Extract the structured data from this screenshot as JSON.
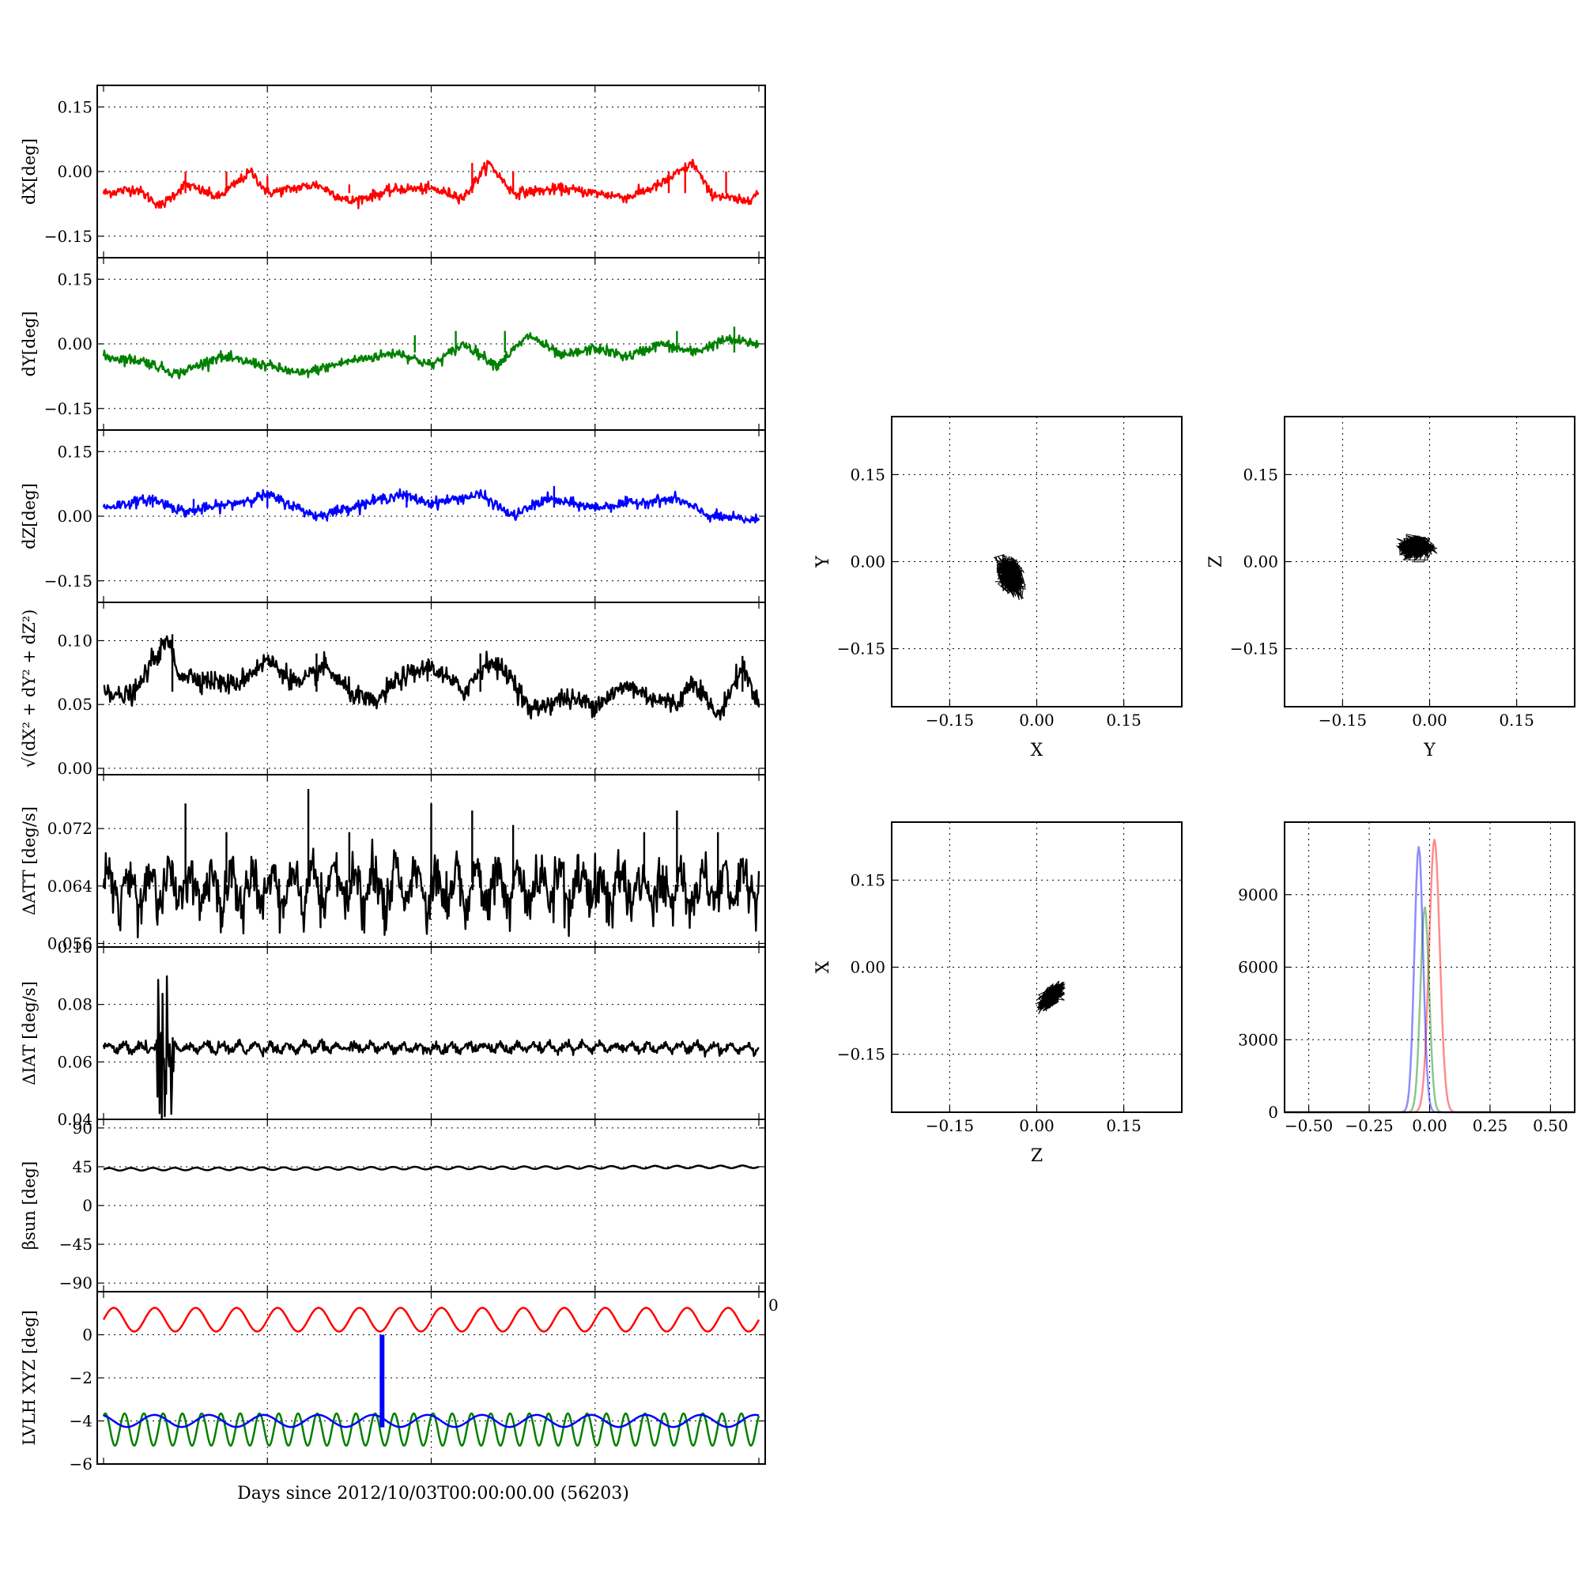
{
  "figure": {
    "xlabel_bottom": "Days since 2012/10/03T00:00:00.00 (56203)",
    "stray_label": "0"
  },
  "chart_data": [
    {
      "id": "dx",
      "type": "line",
      "ylabel": "dX[deg]",
      "ylim": [
        -0.2,
        0.2
      ],
      "yticks": [
        -0.15,
        0.0,
        0.15
      ],
      "ytick_labels": [
        "−0.15",
        "0.00",
        "0.15"
      ],
      "grid": true,
      "x_range": [
        0,
        4
      ],
      "series": [
        {
          "color": "#ff0000",
          "baseline": -0.05,
          "noise": 0.006,
          "knots": [
            [
              0,
              -0.05
            ],
            [
              0.2,
              -0.04
            ],
            [
              0.35,
              -0.08
            ],
            [
              0.5,
              -0.03
            ],
            [
              0.7,
              -0.06
            ],
            [
              0.9,
              0.0
            ],
            [
              1.0,
              -0.05
            ],
            [
              1.3,
              -0.03
            ],
            [
              1.5,
              -0.07
            ],
            [
              1.8,
              -0.04
            ],
            [
              2.0,
              -0.04
            ],
            [
              2.2,
              -0.06
            ],
            [
              2.35,
              0.02
            ],
            [
              2.5,
              -0.05
            ],
            [
              2.8,
              -0.04
            ],
            [
              3.0,
              -0.05
            ],
            [
              3.2,
              -0.06
            ],
            [
              3.4,
              -0.03
            ],
            [
              3.6,
              0.02
            ],
            [
              3.7,
              -0.05
            ],
            [
              3.9,
              -0.07
            ],
            [
              4.0,
              -0.05
            ]
          ],
          "spikes": [
            [
              0.5,
              0.0
            ],
            [
              0.75,
              0.0
            ],
            [
              1.0,
              -0.01
            ],
            [
              1.5,
              -0.03
            ],
            [
              2.25,
              0.02
            ],
            [
              2.5,
              0.0
            ],
            [
              3.45,
              0.0
            ],
            [
              3.55,
              0.02
            ],
            [
              3.8,
              0.0
            ]
          ]
        }
      ]
    },
    {
      "id": "dy",
      "type": "line",
      "ylabel": "dY[deg]",
      "ylim": [
        -0.2,
        0.2
      ],
      "yticks": [
        -0.15,
        0.0,
        0.15
      ],
      "ytick_labels": [
        "−0.15",
        "0.00",
        "0.15"
      ],
      "grid": true,
      "x_range": [
        0,
        4
      ],
      "series": [
        {
          "color": "#008000",
          "baseline": -0.02,
          "noise": 0.006,
          "knots": [
            [
              0,
              -0.03
            ],
            [
              0.25,
              -0.04
            ],
            [
              0.45,
              -0.07
            ],
            [
              0.7,
              -0.03
            ],
            [
              1.0,
              -0.05
            ],
            [
              1.2,
              -0.07
            ],
            [
              1.5,
              -0.04
            ],
            [
              1.8,
              -0.02
            ],
            [
              2.0,
              -0.05
            ],
            [
              2.2,
              0.0
            ],
            [
              2.4,
              -0.05
            ],
            [
              2.6,
              0.02
            ],
            [
              2.8,
              -0.03
            ],
            [
              3.0,
              -0.01
            ],
            [
              3.2,
              -0.03
            ],
            [
              3.4,
              0.0
            ],
            [
              3.6,
              -0.02
            ],
            [
              3.8,
              0.01
            ],
            [
              4.0,
              0.0
            ]
          ],
          "spikes": [
            [
              1.9,
              0.02
            ],
            [
              2.15,
              0.03
            ],
            [
              2.45,
              0.03
            ],
            [
              2.85,
              -0.01
            ],
            [
              3.5,
              0.03
            ],
            [
              3.85,
              0.04
            ]
          ]
        }
      ]
    },
    {
      "id": "dz",
      "type": "line",
      "ylabel": "dZ[deg]",
      "ylim": [
        -0.2,
        0.2
      ],
      "yticks": [
        -0.15,
        0.0,
        0.15
      ],
      "ytick_labels": [
        "−0.15",
        "0.00",
        "0.15"
      ],
      "grid": true,
      "x_range": [
        0,
        4
      ],
      "series": [
        {
          "color": "#0000ff",
          "baseline": 0.02,
          "noise": 0.006,
          "knots": [
            [
              0,
              0.02
            ],
            [
              0.3,
              0.04
            ],
            [
              0.5,
              0.01
            ],
            [
              0.8,
              0.03
            ],
            [
              1.0,
              0.05
            ],
            [
              1.3,
              0.0
            ],
            [
              1.5,
              0.02
            ],
            [
              1.8,
              0.05
            ],
            [
              2.0,
              0.03
            ],
            [
              2.3,
              0.05
            ],
            [
              2.5,
              0.0
            ],
            [
              2.7,
              0.04
            ],
            [
              3.0,
              0.02
            ],
            [
              3.2,
              0.03
            ],
            [
              3.5,
              0.04
            ],
            [
              3.7,
              0.0
            ],
            [
              4.0,
              -0.01
            ]
          ],
          "spikes": [
            [
              0.3,
              0.05
            ],
            [
              0.55,
              0.04
            ],
            [
              1.0,
              0.06
            ],
            [
              1.85,
              0.06
            ],
            [
              2.75,
              0.07
            ]
          ]
        }
      ]
    },
    {
      "id": "dr",
      "type": "line",
      "ylabel": "√(dX² + dY² + dZ²)",
      "ylim": [
        -0.005,
        0.13
      ],
      "yticks": [
        0.0,
        0.05,
        0.1
      ],
      "ytick_labels": [
        "0.00",
        "0.05",
        "0.10"
      ],
      "grid": true,
      "x_range": [
        0,
        4
      ],
      "series": [
        {
          "color": "#000000",
          "baseline": 0.06,
          "noise": 0.004,
          "knots": [
            [
              0,
              0.065
            ],
            [
              0.1,
              0.055
            ],
            [
              0.2,
              0.06
            ],
            [
              0.3,
              0.085
            ],
            [
              0.4,
              0.1
            ],
            [
              0.45,
              0.075
            ],
            [
              0.6,
              0.07
            ],
            [
              0.8,
              0.065
            ],
            [
              1.0,
              0.085
            ],
            [
              1.2,
              0.065
            ],
            [
              1.35,
              0.08
            ],
            [
              1.5,
              0.06
            ],
            [
              1.65,
              0.05
            ],
            [
              1.8,
              0.07
            ],
            [
              2.0,
              0.08
            ],
            [
              2.2,
              0.06
            ],
            [
              2.35,
              0.085
            ],
            [
              2.5,
              0.07
            ],
            [
              2.6,
              0.045
            ],
            [
              2.8,
              0.055
            ],
            [
              3.0,
              0.05
            ],
            [
              3.2,
              0.065
            ],
            [
              3.35,
              0.055
            ],
            [
              3.5,
              0.05
            ],
            [
              3.6,
              0.07
            ],
            [
              3.75,
              0.04
            ],
            [
              3.9,
              0.08
            ],
            [
              4.0,
              0.05
            ]
          ],
          "spikes": [
            [
              0.42,
              0.105
            ],
            [
              1.3,
              0.09
            ],
            [
              2.3,
              0.09
            ],
            [
              3.9,
              0.088
            ]
          ]
        }
      ]
    },
    {
      "id": "att",
      "type": "line",
      "ylabel": "ΔATT [deg/s]",
      "ylim": [
        0.0555,
        0.0795
      ],
      "yticks": [
        0.056,
        0.064,
        0.072
      ],
      "ytick_labels": [
        "0.056",
        "0.064",
        "0.072"
      ],
      "grid": true,
      "x_range": [
        0,
        4
      ],
      "series": [
        {
          "color": "#000000",
          "baseline": 0.0645,
          "amplitude": 0.0025,
          "cycles": 32,
          "noise": 0.0012,
          "spikes": [
            [
              0.5,
              0.0755
            ],
            [
              0.75,
              0.0715
            ],
            [
              1.25,
              0.0775
            ],
            [
              1.5,
              0.0715
            ],
            [
              2.0,
              0.0755
            ],
            [
              2.25,
              0.0745
            ],
            [
              2.5,
              0.0725
            ],
            [
              3.3,
              0.0715
            ],
            [
              3.5,
              0.0745
            ],
            [
              3.75,
              0.0715
            ]
          ]
        }
      ]
    },
    {
      "id": "iat",
      "type": "line",
      "ylabel": "ΔIAT [deg/s]",
      "ylim": [
        0.04,
        0.1
      ],
      "yticks": [
        0.04,
        0.06,
        0.08,
        0.1
      ],
      "ytick_labels": [
        "0.04",
        "0.06",
        "0.08",
        "0.10"
      ],
      "grid": true,
      "x_range": [
        0,
        4
      ],
      "series": [
        {
          "color": "#000000",
          "baseline": 0.065,
          "amplitude": 0.0012,
          "cycles": 40,
          "noise": 0.0008,
          "burst": [
            0.32,
            0.43
          ]
        }
      ]
    },
    {
      "id": "beta",
      "type": "line",
      "ylabel": "βsun [deg]",
      "ylim": [
        -100,
        100
      ],
      "yticks": [
        -90,
        -45,
        0,
        45,
        90
      ],
      "ytick_labels": [
        "−90",
        "−45",
        "0",
        "45",
        "90"
      ],
      "grid": true,
      "x_range": [
        0,
        4
      ],
      "series": [
        {
          "color": "#000000",
          "baseline": 42,
          "amplitude": 1.5,
          "cycles": 30,
          "trend": 3
        }
      ]
    },
    {
      "id": "lvlh",
      "type": "line",
      "ylabel": "LVLH XYZ [deg]",
      "ylim": [
        -6,
        2
      ],
      "yticks": [
        -6,
        -4,
        -2,
        0
      ],
      "ytick_labels": [
        "−6",
        "−4",
        "−2",
        "0"
      ],
      "grid": true,
      "x_range": [
        0,
        4
      ],
      "series": [
        {
          "color": "#ff0000",
          "baseline": 0.7,
          "amplitude": 0.55,
          "cycles": 16
        },
        {
          "color": "#008000",
          "baseline": -4.4,
          "amplitude": 0.75,
          "cycles": 34
        },
        {
          "color": "#0000ff",
          "baseline": -4.0,
          "amplitude": 0.28,
          "cycles": 12,
          "spike_x": 1.7
        }
      ]
    },
    {
      "id": "xy",
      "type": "scatter",
      "xlabel": "X",
      "ylabel": "Y",
      "xlim": [
        -0.25,
        0.25
      ],
      "ylim": [
        -0.25,
        0.25
      ],
      "xticks": [
        -0.15,
        0.0,
        0.15
      ],
      "yticks": [
        -0.15,
        0.0,
        0.15
      ],
      "tick_labels": [
        "−0.15",
        "0.00",
        "0.15"
      ],
      "grid": true,
      "cluster": {
        "cx": -0.045,
        "cy": -0.025,
        "sx": 0.015,
        "sy": 0.022,
        "rho": -0.3
      }
    },
    {
      "id": "yz",
      "type": "scatter",
      "xlabel": "Y",
      "ylabel": "Z",
      "xlim": [
        -0.25,
        0.25
      ],
      "ylim": [
        -0.25,
        0.25
      ],
      "xticks": [
        -0.15,
        0.0,
        0.15
      ],
      "yticks": [
        -0.15,
        0.0,
        0.15
      ],
      "tick_labels": [
        "−0.15",
        "0.00",
        "0.15"
      ],
      "grid": true,
      "cluster": {
        "cx": -0.025,
        "cy": 0.025,
        "sx": 0.02,
        "sy": 0.013,
        "rho": 0.0
      }
    },
    {
      "id": "zx",
      "type": "scatter",
      "xlabel": "Z",
      "ylabel": "X",
      "xlim": [
        -0.25,
        0.25
      ],
      "ylim": [
        -0.25,
        0.25
      ],
      "xticks": [
        -0.15,
        0.0,
        0.15
      ],
      "yticks": [
        -0.15,
        0.0,
        0.15
      ],
      "tick_labels": [
        "−0.15",
        "0.00",
        "0.15"
      ],
      "grid": true,
      "cluster": {
        "cx": 0.025,
        "cy": -0.05,
        "sx": 0.015,
        "sy": 0.015,
        "rho": 0.65
      }
    },
    {
      "id": "hist",
      "type": "line",
      "xlim": [
        -0.6,
        0.6
      ],
      "ylim": [
        0,
        12000
      ],
      "xticks": [
        -0.5,
        -0.25,
        0.0,
        0.25,
        0.5
      ],
      "xtick_labels": [
        "−0.50",
        "−0.25",
        "0.00",
        "0.25",
        "0.50"
      ],
      "yticks": [
        0,
        3000,
        6000,
        9000
      ],
      "ytick_labels": [
        "0",
        "3000",
        "6000",
        "9000"
      ],
      "grid": true,
      "series": [
        {
          "color": "#ff0000",
          "opacity": 0.45,
          "center": 0.02,
          "sigma": 0.022,
          "peak": 11300
        },
        {
          "color": "#008000",
          "opacity": 0.45,
          "center": -0.02,
          "sigma": 0.018,
          "peak": 8500
        },
        {
          "color": "#0000ff",
          "opacity": 0.45,
          "center": -0.045,
          "sigma": 0.018,
          "peak": 11000
        }
      ]
    }
  ]
}
